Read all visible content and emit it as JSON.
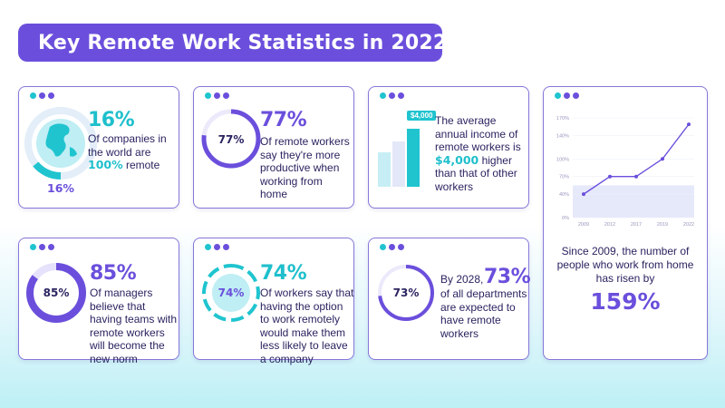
{
  "title": "Key Remote Work Statistics in 2022",
  "cards": [
    {
      "big": "16%",
      "ring_label": "16%",
      "desc_pre": "Of companies in the world are ",
      "desc_highlight": "100%",
      "desc_post": " remote",
      "icon": "globe-icon"
    },
    {
      "big": "77%",
      "ring_label": "77%",
      "desc": "Of remote workers say they're more productive when working from home"
    },
    {
      "badge": "$4,000",
      "desc_pre": "The average annual income of remote workers is ",
      "desc_highlight": "$4,000",
      "desc_post": " higher than that of other workers",
      "icon": "bar-chart-icon"
    },
    {
      "big": "85%",
      "ring_label": "85%",
      "desc": "Of managers believe that having teams with remote workers will become the new norm"
    },
    {
      "big": "74%",
      "ring_label": "74%",
      "desc": "Of workers say that having the option to work remotely would make them less likely to leave a company"
    },
    {
      "prefix": "By 2028,",
      "big": "73%",
      "ring_label": "73%",
      "desc": "of all departments are expected to have remote workers"
    }
  ],
  "chart_data": {
    "type": "line",
    "x": [
      "2009",
      "2012",
      "2017",
      "2019",
      "2022"
    ],
    "values": [
      40,
      70,
      70,
      100,
      159
    ],
    "yticks": [
      "0%",
      "40%",
      "70%",
      "100%",
      "140%",
      "170%"
    ],
    "ylim": [
      0,
      170
    ]
  },
  "chart_card": {
    "text": "Since 2009, the number of people who work from home has risen by",
    "big": "159%"
  },
  "colors": {
    "purple": "#6b4fdc",
    "teal": "#1fc4cf",
    "border": "#8677d9"
  }
}
